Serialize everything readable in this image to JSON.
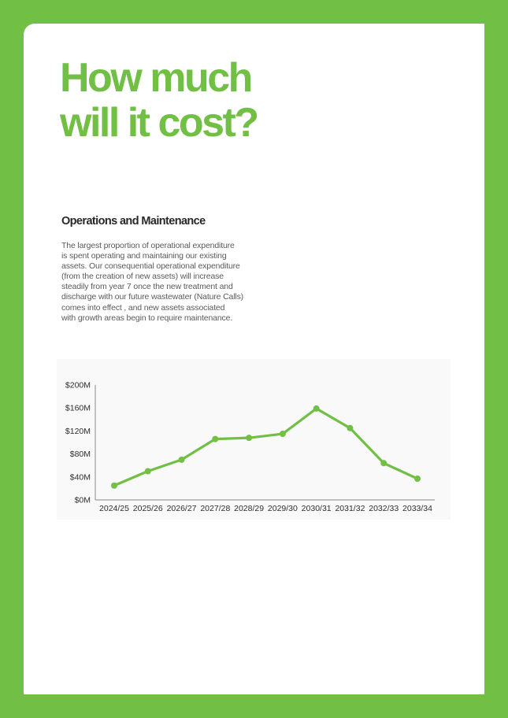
{
  "theme": {
    "green": "#71BF44",
    "page_bg": "#ffffff",
    "panel_bg": "#f9f9f9",
    "heading_text": "#282828",
    "body_text": "#5a5a5a",
    "axis_line": "#9e9e9e",
    "tick_text": "#2e2e2e"
  },
  "page": {
    "title": "How much\nwill it cost?"
  },
  "section": {
    "heading": "Operations and Maintenance",
    "body": "The largest proportion of operational expenditure\nis spent operating and maintaining our existing\nassets. Our consequential operational expenditure\n(from the creation of new assets) will increase\nsteadily from year 7 once the new treatment and\ndischarge with our future wastewater (Nature Calls)\ncomes into effect , and new assets associated\nwith growth areas begin to require maintenance."
  },
  "chart_data": {
    "type": "line",
    "categories": [
      "2024/25",
      "2025/26",
      "2026/27",
      "2027/28",
      "2028/29",
      "2029/30",
      "2030/31",
      "2031/32",
      "2032/33",
      "2033/34"
    ],
    "values": [
      25,
      50,
      70,
      106,
      108,
      115,
      159,
      125,
      64,
      37
    ],
    "ylim": [
      0,
      200
    ],
    "y_ticks": [
      {
        "value": 0,
        "label": "$0M"
      },
      {
        "value": 40,
        "label": "$40M"
      },
      {
        "value": 80,
        "label": "$80M"
      },
      {
        "value": 120,
        "label": "$120M"
      },
      {
        "value": 160,
        "label": "$160M"
      },
      {
        "value": 200,
        "label": "$200M"
      }
    ],
    "title": "",
    "xlabel": "",
    "ylabel": "",
    "grid": false,
    "legend": false,
    "line_color": "#71BF44",
    "marker": "circle"
  }
}
